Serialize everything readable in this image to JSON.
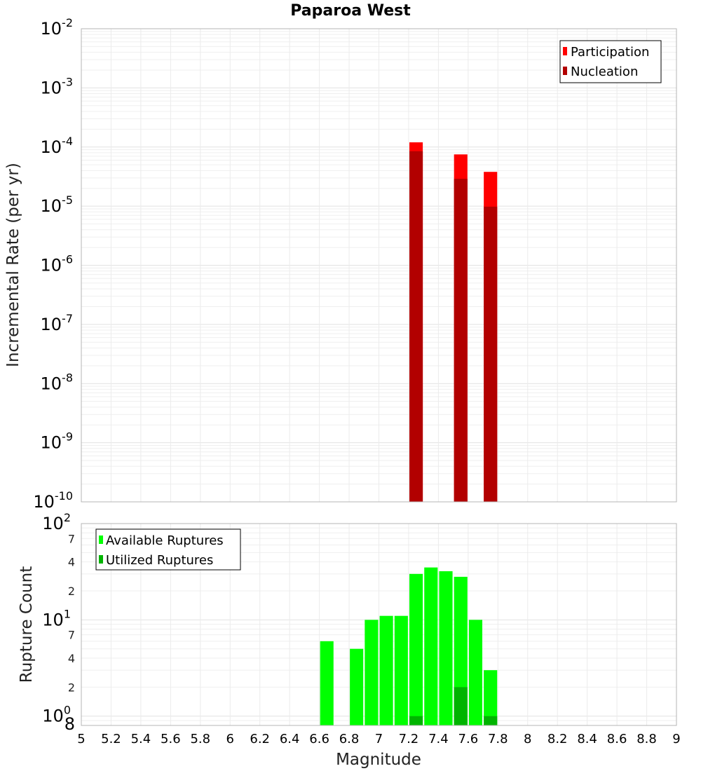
{
  "title": "Paparoa West",
  "chart_data": [
    {
      "type": "bar",
      "ylabel": "Incremental Rate (per yr)",
      "xlabel": "",
      "yscale": "log",
      "ylim": [
        1e-10,
        0.01
      ],
      "xlim": [
        5,
        9
      ],
      "y_ticks": [
        {
          "base": "10",
          "exp": "-2"
        },
        {
          "base": "10",
          "exp": "-3"
        },
        {
          "base": "10",
          "exp": "-4"
        },
        {
          "base": "10",
          "exp": "-5"
        },
        {
          "base": "10",
          "exp": "-6"
        },
        {
          "base": "10",
          "exp": "-7"
        },
        {
          "base": "10",
          "exp": "-8"
        },
        {
          "base": "10",
          "exp": "-9"
        },
        {
          "base": "10",
          "exp": "-10"
        }
      ],
      "legend": {
        "placement": "top-right",
        "entries": [
          "Participation",
          "Nucleation"
        ]
      },
      "series": [
        {
          "name": "Participation",
          "color": "#ff0000",
          "x": [
            7.25,
            7.55,
            7.75
          ],
          "values": [
            0.00012,
            7.5e-05,
            3.8e-05
          ]
        },
        {
          "name": "Nucleation",
          "color": "#b20000",
          "x": [
            7.25,
            7.55,
            7.75
          ],
          "values": [
            8.5e-05,
            2.9e-05,
            9.8e-06
          ]
        }
      ]
    },
    {
      "type": "bar",
      "ylabel": "Rupture Count",
      "xlabel": "Magnitude",
      "yscale": "log",
      "ylim": [
        0.8,
        100
      ],
      "xlim": [
        5,
        9
      ],
      "y_ticks": [
        {
          "base": "10",
          "exp": "2",
          "value": 100
        },
        {
          "base": "10",
          "exp": "1",
          "value": 10
        },
        {
          "base": "10",
          "exp": "0",
          "value": 1
        }
      ],
      "y_minor_labels": [
        {
          "label": "7",
          "value": 70
        },
        {
          "label": "4",
          "value": 40
        },
        {
          "label": "2",
          "value": 20
        },
        {
          "label": "7",
          "value": 7
        },
        {
          "label": "4",
          "value": 4
        },
        {
          "label": "2",
          "value": 2
        },
        {
          "label": "8",
          "value": 0.8
        }
      ],
      "x_ticks": [
        "5",
        "5.2",
        "5.4",
        "5.6",
        "5.8",
        "6",
        "6.2",
        "6.4",
        "6.6",
        "6.8",
        "7",
        "7.2",
        "7.4",
        "7.6",
        "7.8",
        "8",
        "8.2",
        "8.4",
        "8.6",
        "8.8",
        "9"
      ],
      "legend": {
        "placement": "top-left",
        "entries": [
          "Available Ruptures",
          "Utilized Ruptures"
        ]
      },
      "series": [
        {
          "name": "Available Ruptures",
          "color": "#00ff00",
          "x": [
            6.65,
            6.85,
            6.95,
            7.05,
            7.15,
            7.25,
            7.35,
            7.45,
            7.55,
            7.65,
            7.75
          ],
          "values": [
            6,
            5,
            10,
            11,
            11,
            30,
            35,
            32,
            28,
            10,
            3
          ]
        },
        {
          "name": "Utilized Ruptures",
          "color": "#00b400",
          "x": [
            7.25,
            7.55,
            7.75
          ],
          "values": [
            1,
            2,
            1
          ]
        }
      ]
    }
  ]
}
